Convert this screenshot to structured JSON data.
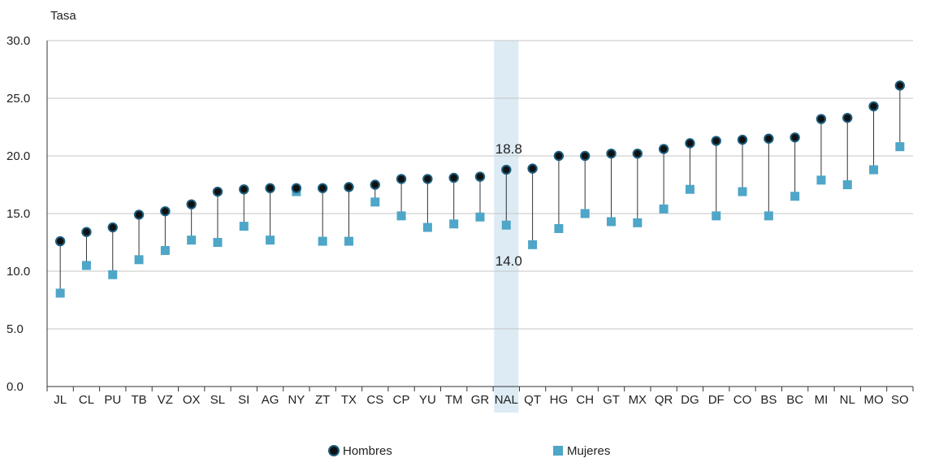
{
  "chart_data": {
    "type": "scatter",
    "ylabel": "Tasa",
    "ylim": [
      0,
      30
    ],
    "yticks": [
      "0.0",
      "5.0",
      "10.0",
      "15.0",
      "20.0",
      "25.0",
      "30.0"
    ],
    "grid": true,
    "legend_placement": "bottom-center",
    "highlight_category": "NAL",
    "categories": [
      "JL",
      "CL",
      "PU",
      "TB",
      "VZ",
      "OX",
      "SL",
      "SI",
      "AG",
      "NY",
      "ZT",
      "TX",
      "CS",
      "CP",
      "YU",
      "TM",
      "GR",
      "NAL",
      "QT",
      "HG",
      "CH",
      "GT",
      "MX",
      "QR",
      "DG",
      "DF",
      "CO",
      "BS",
      "BC",
      "MI",
      "NL",
      "MO",
      "SO"
    ],
    "series": [
      {
        "name": "Hombres",
        "marker": "circle",
        "color": "#1b5e7e",
        "values": [
          12.6,
          13.4,
          13.8,
          14.9,
          15.2,
          15.8,
          16.9,
          17.1,
          17.2,
          17.2,
          17.2,
          17.3,
          17.5,
          18.0,
          18.0,
          18.1,
          18.2,
          18.8,
          18.9,
          20.0,
          20.0,
          20.2,
          20.2,
          20.6,
          21.1,
          21.3,
          21.4,
          21.5,
          21.6,
          23.2,
          23.3,
          24.3,
          26.1
        ]
      },
      {
        "name": "Mujeres",
        "marker": "square",
        "color": "#4ea6c8",
        "values": [
          8.1,
          10.5,
          9.7,
          11.0,
          11.8,
          12.7,
          12.5,
          13.9,
          12.7,
          16.9,
          12.6,
          12.6,
          16.0,
          14.8,
          13.8,
          14.1,
          14.7,
          14.0,
          12.3,
          13.7,
          15.0,
          14.3,
          14.2,
          15.4,
          17.1,
          14.8,
          16.9,
          14.8,
          16.5,
          17.9,
          17.5,
          18.8,
          20.8
        ]
      }
    ],
    "annotations": [
      {
        "category": "NAL",
        "series": "Hombres",
        "text": "18.8"
      },
      {
        "category": "NAL",
        "series": "Mujeres",
        "text": "14.0"
      }
    ]
  },
  "colors": {
    "highlight_band": "#dcebf4",
    "grid": "#c6c6c6",
    "axis": "#333333",
    "connector": "#333333"
  }
}
